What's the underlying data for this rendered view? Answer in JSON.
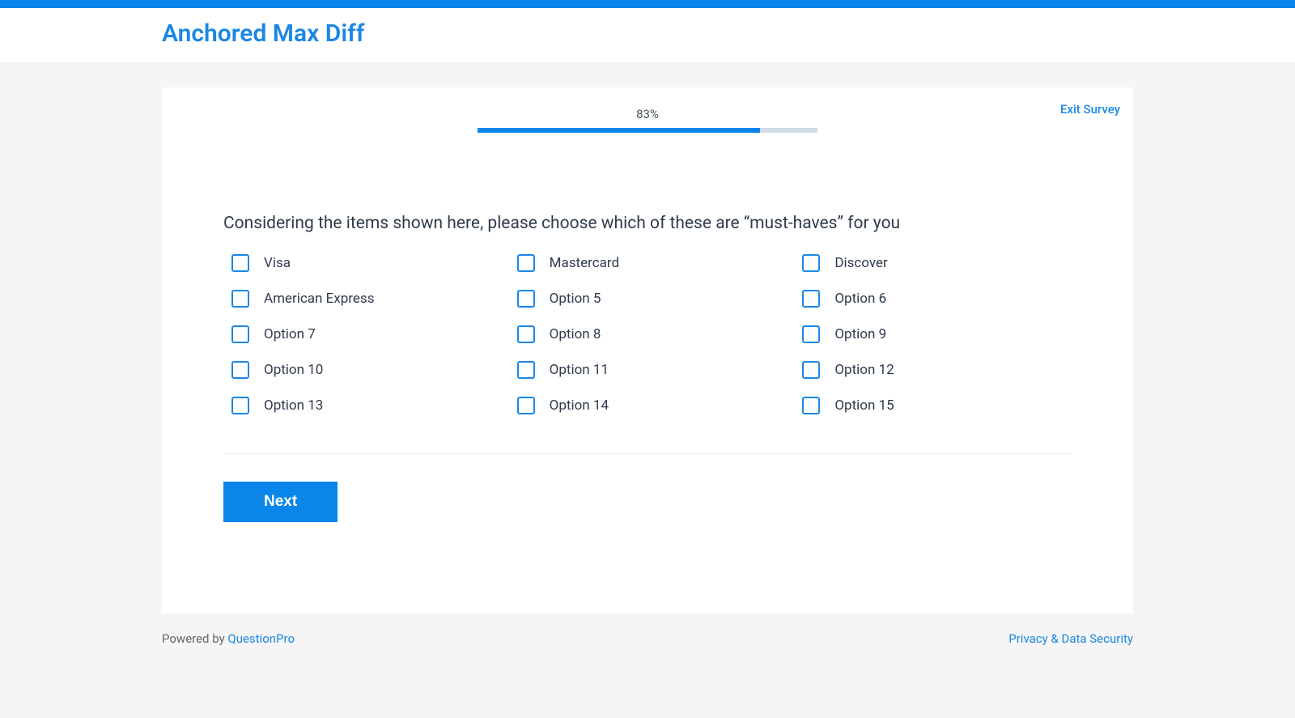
{
  "colors": {
    "accent": "#0a86ea",
    "link": "#1b87e5",
    "text_dark": "#2f3b4c",
    "background": "#f5f5f5",
    "card_bg": "#ffffff",
    "progress_track": "#d0dbe8",
    "divider": "#ececec"
  },
  "header": {
    "title": "Anchored Max Diff"
  },
  "survey": {
    "exit_label": "Exit Survey",
    "progress_percent": 83,
    "progress_label": "83%",
    "question_text": "Considering the items shown here, please choose which of these are “must-haves” for you",
    "options": [
      "Visa",
      "Mastercard",
      "Discover",
      "American Express",
      "Option 5",
      "Option 6",
      "Option 7",
      "Option 8",
      "Option 9",
      "Option 10",
      "Option 11",
      "Option 12",
      "Option 13",
      "Option 14",
      "Option 15"
    ],
    "next_label": "Next"
  },
  "footer": {
    "powered_by_prefix": "Powered by ",
    "powered_by_brand": "QuestionPro",
    "privacy_label": "Privacy & Data Security"
  }
}
